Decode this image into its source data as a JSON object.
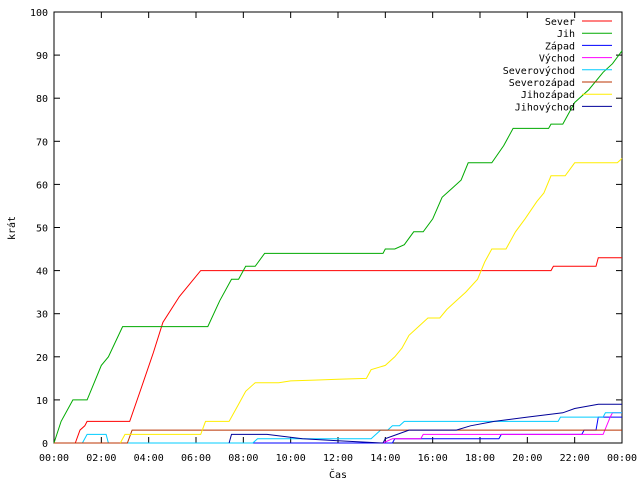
{
  "chart_data": {
    "type": "line",
    "title": "",
    "xlabel": "Čas",
    "ylabel": "krát",
    "xlim": [
      0,
      24
    ],
    "ylim": [
      0,
      100
    ],
    "x_ticks": [
      "00:00",
      "02:00",
      "04:00",
      "06:00",
      "08:00",
      "10:00",
      "12:00",
      "14:00",
      "16:00",
      "18:00",
      "20:00",
      "22:00",
      "00:00"
    ],
    "y_ticks": [
      0,
      10,
      20,
      30,
      40,
      50,
      60,
      70,
      80,
      90,
      100
    ],
    "grid": false,
    "legend_position": "top-right",
    "series": [
      {
        "name": "Sever",
        "color": "#ff0000",
        "points": [
          [
            0.9,
            0
          ],
          [
            1.1,
            3
          ],
          [
            1.3,
            4
          ],
          [
            1.4,
            5
          ],
          [
            3.2,
            5
          ],
          [
            3.7,
            13
          ],
          [
            4.2,
            21
          ],
          [
            4.6,
            28
          ],
          [
            5.3,
            34
          ],
          [
            6.2,
            40
          ],
          [
            21.0,
            40
          ],
          [
            21.1,
            41
          ],
          [
            22.9,
            41
          ],
          [
            23.0,
            43
          ],
          [
            24.0,
            43
          ]
        ]
      },
      {
        "name": "Jih",
        "color": "#00aa00",
        "points": [
          [
            0,
            0
          ],
          [
            0.3,
            5
          ],
          [
            0.8,
            10
          ],
          [
            1.4,
            10
          ],
          [
            1.7,
            14
          ],
          [
            2.0,
            18
          ],
          [
            2.3,
            20
          ],
          [
            2.9,
            27
          ],
          [
            6.5,
            27
          ],
          [
            7.0,
            33
          ],
          [
            7.5,
            38
          ],
          [
            7.8,
            38
          ],
          [
            8.1,
            41
          ],
          [
            8.5,
            41
          ],
          [
            8.9,
            44
          ],
          [
            13.9,
            44
          ],
          [
            14.0,
            45
          ],
          [
            14.4,
            45
          ],
          [
            14.8,
            46
          ],
          [
            15.2,
            49
          ],
          [
            15.6,
            49
          ],
          [
            16.0,
            52
          ],
          [
            16.4,
            57
          ],
          [
            16.8,
            59
          ],
          [
            17.2,
            61
          ],
          [
            17.5,
            65
          ],
          [
            18.5,
            65
          ],
          [
            19.0,
            69
          ],
          [
            19.4,
            73
          ],
          [
            20.9,
            73
          ],
          [
            21.0,
            74
          ],
          [
            21.5,
            74
          ],
          [
            22.0,
            79
          ],
          [
            22.6,
            82
          ],
          [
            23.2,
            86
          ],
          [
            23.6,
            88
          ],
          [
            24.0,
            91
          ]
        ]
      },
      {
        "name": "Západ",
        "color": "#0000ff",
        "points": [
          [
            0.7,
            0
          ],
          [
            14.3,
            0
          ],
          [
            14.4,
            1
          ],
          [
            18.8,
            1
          ],
          [
            18.9,
            2
          ],
          [
            22.3,
            2
          ],
          [
            22.4,
            3
          ],
          [
            22.9,
            3
          ],
          [
            23.0,
            6
          ],
          [
            24.0,
            6
          ]
        ]
      },
      {
        "name": "Východ",
        "color": "#ff00ff",
        "points": [
          [
            13.9,
            0
          ],
          [
            14.3,
            1
          ],
          [
            15.5,
            1
          ],
          [
            15.6,
            2
          ],
          [
            23.2,
            2
          ],
          [
            23.5,
            6
          ],
          [
            23.6,
            7
          ],
          [
            24.0,
            7
          ]
        ]
      },
      {
        "name": "Severovýchod",
        "color": "#00ccff",
        "points": [
          [
            1.2,
            0
          ],
          [
            1.4,
            2
          ],
          [
            2.2,
            2
          ],
          [
            2.3,
            0
          ],
          [
            8.4,
            0
          ],
          [
            8.6,
            1
          ],
          [
            13.4,
            1
          ],
          [
            13.8,
            3
          ],
          [
            14.1,
            3
          ],
          [
            14.3,
            4
          ],
          [
            14.6,
            4
          ],
          [
            14.8,
            5
          ],
          [
            21.3,
            5
          ],
          [
            21.4,
            6
          ],
          [
            23.2,
            6
          ],
          [
            23.3,
            7
          ],
          [
            24.0,
            7
          ]
        ]
      },
      {
        "name": "Severozápad",
        "color": "#bb3300",
        "points": [
          [
            0,
            0
          ],
          [
            1.0,
            0
          ],
          [
            3.1,
            0
          ],
          [
            3.3,
            3
          ],
          [
            24.0,
            3
          ]
        ]
      },
      {
        "name": "Jihozápad",
        "color": "#ffee00",
        "points": [
          [
            2.8,
            0
          ],
          [
            3.0,
            2
          ],
          [
            6.2,
            2
          ],
          [
            6.4,
            5
          ],
          [
            7.4,
            5
          ],
          [
            7.8,
            9
          ],
          [
            8.1,
            12
          ],
          [
            8.5,
            14
          ],
          [
            9.5,
            14
          ],
          [
            10.0,
            14.4
          ],
          [
            11.0,
            14.6
          ],
          [
            12.0,
            14.8
          ],
          [
            13.2,
            15
          ],
          [
            13.4,
            17
          ],
          [
            14.0,
            18
          ],
          [
            14.4,
            20
          ],
          [
            14.7,
            22
          ],
          [
            15.0,
            25
          ],
          [
            15.4,
            27
          ],
          [
            15.8,
            29
          ],
          [
            16.3,
            29
          ],
          [
            16.6,
            31
          ],
          [
            17.0,
            33
          ],
          [
            17.4,
            35
          ],
          [
            17.9,
            38
          ],
          [
            18.2,
            42
          ],
          [
            18.5,
            45
          ],
          [
            19.1,
            45
          ],
          [
            19.5,
            49
          ],
          [
            19.9,
            52
          ],
          [
            20.4,
            56
          ],
          [
            20.7,
            58
          ],
          [
            21.0,
            62
          ],
          [
            21.6,
            62
          ],
          [
            22.0,
            65
          ],
          [
            23.8,
            65
          ],
          [
            24.0,
            66
          ]
        ]
      },
      {
        "name": "Jihovýchod",
        "color": "#000099",
        "points": [
          [
            7.4,
            0
          ],
          [
            7.5,
            2
          ],
          [
            9.0,
            2
          ],
          [
            10.5,
            1
          ],
          [
            12.0,
            0.5
          ],
          [
            13.9,
            0
          ],
          [
            14.0,
            1
          ],
          [
            14.5,
            2
          ],
          [
            15.0,
            3
          ],
          [
            17.0,
            3
          ],
          [
            17.6,
            4
          ],
          [
            18.6,
            5
          ],
          [
            20.0,
            6
          ],
          [
            21.5,
            7
          ],
          [
            22.0,
            8
          ],
          [
            23.0,
            9
          ],
          [
            24.0,
            9
          ]
        ]
      }
    ]
  }
}
